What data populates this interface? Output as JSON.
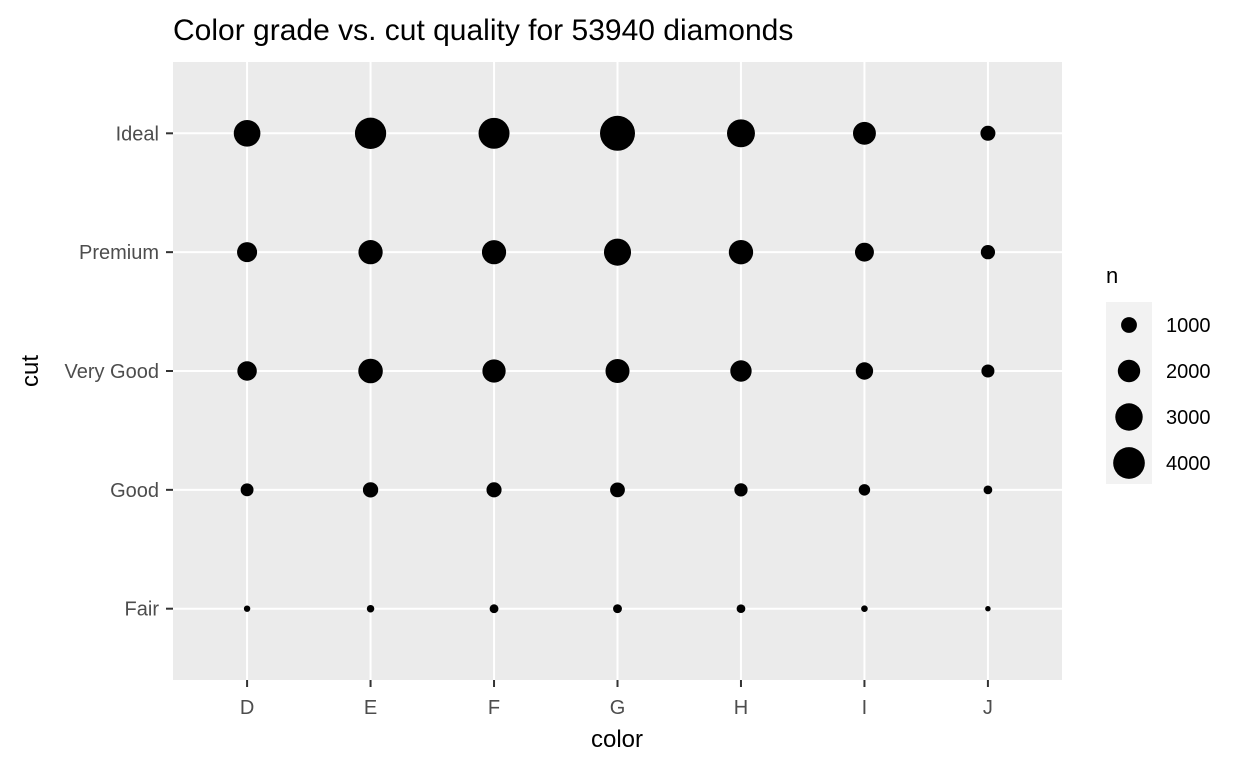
{
  "chart_data": {
    "type": "scatter",
    "title": "Color grade vs. cut quality for 53940 diamonds",
    "xlabel": "color",
    "ylabel": "cut",
    "x_categories": [
      "D",
      "E",
      "F",
      "G",
      "H",
      "I",
      "J"
    ],
    "y_categories": [
      "Fair",
      "Good",
      "Very Good",
      "Premium",
      "Ideal"
    ],
    "size_variable": "n",
    "points": [
      {
        "x": "D",
        "y": "Fair",
        "n": 163
      },
      {
        "x": "E",
        "y": "Fair",
        "n": 224
      },
      {
        "x": "F",
        "y": "Fair",
        "n": 312
      },
      {
        "x": "G",
        "y": "Fair",
        "n": 314
      },
      {
        "x": "H",
        "y": "Fair",
        "n": 303
      },
      {
        "x": "I",
        "y": "Fair",
        "n": 175
      },
      {
        "x": "J",
        "y": "Fair",
        "n": 119
      },
      {
        "x": "D",
        "y": "Good",
        "n": 662
      },
      {
        "x": "E",
        "y": "Good",
        "n": 933
      },
      {
        "x": "F",
        "y": "Good",
        "n": 909
      },
      {
        "x": "G",
        "y": "Good",
        "n": 871
      },
      {
        "x": "H",
        "y": "Good",
        "n": 702
      },
      {
        "x": "I",
        "y": "Good",
        "n": 522
      },
      {
        "x": "J",
        "y": "Good",
        "n": 307
      },
      {
        "x": "D",
        "y": "Very Good",
        "n": 1513
      },
      {
        "x": "E",
        "y": "Very Good",
        "n": 2400
      },
      {
        "x": "F",
        "y": "Very Good",
        "n": 2164
      },
      {
        "x": "G",
        "y": "Very Good",
        "n": 2299
      },
      {
        "x": "H",
        "y": "Very Good",
        "n": 1824
      },
      {
        "x": "I",
        "y": "Very Good",
        "n": 1204
      },
      {
        "x": "J",
        "y": "Very Good",
        "n": 678
      },
      {
        "x": "D",
        "y": "Premium",
        "n": 1603
      },
      {
        "x": "E",
        "y": "Premium",
        "n": 2337
      },
      {
        "x": "F",
        "y": "Premium",
        "n": 2331
      },
      {
        "x": "G",
        "y": "Premium",
        "n": 2924
      },
      {
        "x": "H",
        "y": "Premium",
        "n": 2360
      },
      {
        "x": "I",
        "y": "Premium",
        "n": 1428
      },
      {
        "x": "J",
        "y": "Premium",
        "n": 808
      },
      {
        "x": "D",
        "y": "Ideal",
        "n": 2834
      },
      {
        "x": "E",
        "y": "Ideal",
        "n": 3903
      },
      {
        "x": "F",
        "y": "Ideal",
        "n": 3826
      },
      {
        "x": "G",
        "y": "Ideal",
        "n": 4884
      },
      {
        "x": "H",
        "y": "Ideal",
        "n": 3115
      },
      {
        "x": "I",
        "y": "Ideal",
        "n": 2093
      },
      {
        "x": "J",
        "y": "Ideal",
        "n": 896
      }
    ],
    "legend": {
      "title": "n",
      "placement": "right",
      "entries": [
        {
          "label": "1000",
          "value": 1000
        },
        {
          "label": "2000",
          "value": 2000
        },
        {
          "label": "3000",
          "value": 3000
        },
        {
          "label": "4000",
          "value": 4000
        }
      ]
    },
    "grid": true,
    "colors": {
      "panel": "#ebebeb",
      "grid": "#ffffff",
      "point": "#000000",
      "tick_text": "#4d4d4d",
      "tick_mark": "#333333"
    }
  }
}
